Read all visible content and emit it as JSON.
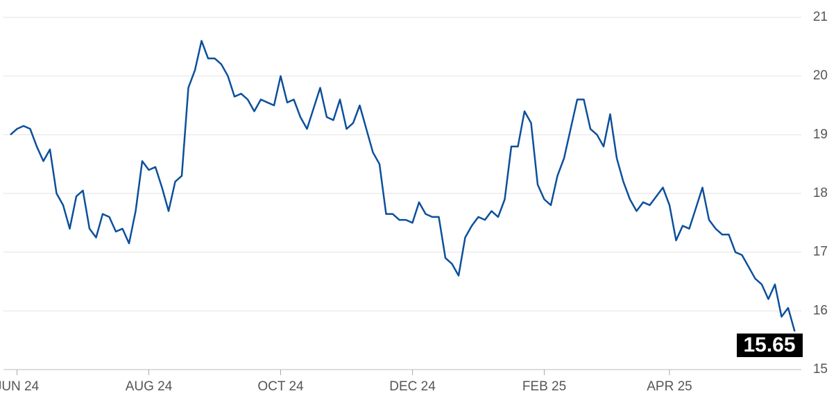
{
  "chart_data": {
    "type": "line",
    "categories": [
      null,
      "JUN 24",
      null,
      null,
      null,
      null,
      null,
      null,
      null,
      null,
      null,
      null,
      null,
      null,
      null,
      null,
      null,
      null,
      null,
      null,
      null,
      "AUG 24",
      null,
      null,
      null,
      null,
      null,
      null,
      null,
      null,
      null,
      null,
      null,
      null,
      null,
      null,
      null,
      null,
      null,
      null,
      null,
      "OCT 24",
      null,
      null,
      null,
      null,
      null,
      null,
      null,
      null,
      null,
      null,
      null,
      null,
      null,
      null,
      null,
      null,
      null,
      null,
      null,
      "DEC 24",
      null,
      null,
      null,
      null,
      null,
      null,
      null,
      null,
      null,
      null,
      null,
      null,
      null,
      null,
      null,
      null,
      null,
      null,
      null,
      "FEB 25",
      null,
      null,
      null,
      null,
      null,
      null,
      null,
      null,
      null,
      null,
      null,
      null,
      null,
      null,
      null,
      null,
      null,
      null,
      "APR 25",
      null,
      null,
      null,
      null,
      null,
      null,
      null,
      null,
      null,
      null,
      null,
      null,
      null,
      null,
      null,
      null,
      null,
      null,
      null
    ],
    "values": [
      19.0,
      19.1,
      19.15,
      19.1,
      18.8,
      18.55,
      18.75,
      18.0,
      17.8,
      17.4,
      17.95,
      18.05,
      17.4,
      17.25,
      17.65,
      17.6,
      17.35,
      17.4,
      17.15,
      17.7,
      18.55,
      18.4,
      18.45,
      18.1,
      17.7,
      18.2,
      18.3,
      19.8,
      20.1,
      20.6,
      20.3,
      20.3,
      20.2,
      20.0,
      19.65,
      19.7,
      19.6,
      19.4,
      19.6,
      19.55,
      19.5,
      20.0,
      19.55,
      19.6,
      19.3,
      19.1,
      19.45,
      19.8,
      19.3,
      19.25,
      19.6,
      19.1,
      19.2,
      19.5,
      19.1,
      18.7,
      18.5,
      17.65,
      17.65,
      17.55,
      17.55,
      17.5,
      17.85,
      17.65,
      17.6,
      17.6,
      16.9,
      16.8,
      16.6,
      17.25,
      17.45,
      17.6,
      17.55,
      17.7,
      17.6,
      17.9,
      18.8,
      18.8,
      19.4,
      19.2,
      18.15,
      17.9,
      17.8,
      18.3,
      18.6,
      19.1,
      19.6,
      19.6,
      19.1,
      19.0,
      18.8,
      19.35,
      18.6,
      18.2,
      17.9,
      17.7,
      17.85,
      17.8,
      17.95,
      18.1,
      17.8,
      17.2,
      17.45,
      17.4,
      17.75,
      18.1,
      17.55,
      17.4,
      17.3,
      17.3,
      17.0,
      16.95,
      16.75,
      16.55,
      16.45,
      16.2,
      16.45,
      15.9,
      16.05,
      15.65
    ],
    "color": "#0b4f9c",
    "ylim": [
      15,
      21
    ],
    "yticks": [
      15,
      16,
      17,
      18,
      19,
      20,
      21
    ],
    "grid": true
  }
}
